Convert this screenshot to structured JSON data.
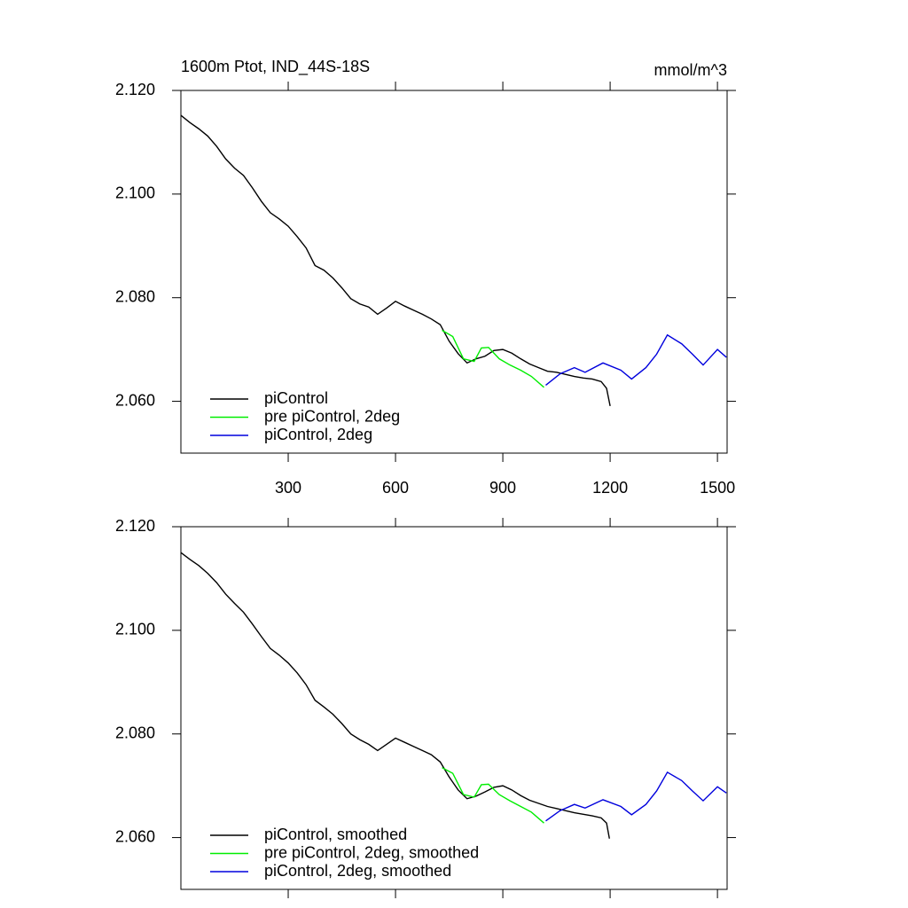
{
  "chart_data": [
    {
      "type": "line",
      "title": "1600m Ptot, IND_44S-18S",
      "y_units": "mmol/m^3",
      "xlim": [
        0,
        1527
      ],
      "xticks": [
        300,
        600,
        900,
        1200,
        1500
      ],
      "show_xtick_labels": true,
      "ylim": [
        2.05,
        2.12
      ],
      "yticks": [
        {
          "value": 2.06,
          "label": "2.060"
        },
        {
          "value": 2.08,
          "label": "2.080"
        },
        {
          "value": 2.1,
          "label": "2.100"
        },
        {
          "value": 2.12,
          "label": "2.120"
        }
      ],
      "legend": "lower left",
      "series": [
        {
          "name": "piControl",
          "color": "#000000",
          "x": [
            0,
            25,
            50,
            75,
            100,
            125,
            150,
            175,
            200,
            225,
            250,
            275,
            300,
            325,
            350,
            375,
            400,
            425,
            450,
            475,
            500,
            525,
            550,
            575,
            600,
            625,
            650,
            675,
            700,
            725,
            750,
            775,
            800,
            825,
            850,
            875,
            900,
            925,
            950,
            975,
            1000,
            1025,
            1050,
            1075,
            1100,
            1125,
            1150,
            1175,
            1190,
            1200
          ],
          "values": [
            2.1152,
            2.1138,
            2.1126,
            2.1112,
            2.1092,
            2.1068,
            2.105,
            2.1036,
            2.1012,
            2.0986,
            2.0964,
            2.0952,
            2.0938,
            2.0918,
            2.0896,
            2.0862,
            2.0853,
            2.0838,
            2.0819,
            2.0798,
            2.0788,
            2.0782,
            2.0768,
            2.078,
            2.0793,
            2.0784,
            2.0776,
            2.0768,
            2.0759,
            2.0748,
            2.0716,
            2.0692,
            2.0674,
            2.0682,
            2.0687,
            2.0698,
            2.07,
            2.0693,
            2.0682,
            2.0672,
            2.0665,
            2.0658,
            2.0656,
            2.0652,
            2.0648,
            2.0645,
            2.0643,
            2.0638,
            2.0625,
            2.0591
          ]
        },
        {
          "name": "pre piControl, 2deg",
          "color": "#00ee00",
          "x": [
            730,
            760,
            790,
            820,
            840,
            860,
            890,
            920,
            950,
            980,
            1015
          ],
          "values": [
            2.0737,
            2.0725,
            2.0682,
            2.0677,
            2.0703,
            2.0704,
            2.0682,
            2.067,
            2.066,
            2.0648,
            2.0627
          ]
        },
        {
          "name": "piControl, 2deg",
          "color": "#0000dd",
          "x": [
            1020,
            1060,
            1100,
            1130,
            1180,
            1230,
            1260,
            1300,
            1330,
            1360,
            1400,
            1430,
            1460,
            1500,
            1525
          ],
          "values": [
            2.0631,
            2.0653,
            2.0665,
            2.0656,
            2.0674,
            2.066,
            2.0643,
            2.0665,
            2.0691,
            2.0728,
            2.0711,
            2.0691,
            2.067,
            2.07,
            2.0685
          ]
        }
      ]
    },
    {
      "type": "line",
      "xlim": [
        0,
        1527
      ],
      "xticks": [
        300,
        600,
        900,
        1200,
        1500
      ],
      "show_xtick_labels": false,
      "ylim": [
        2.05,
        2.12
      ],
      "yticks": [
        {
          "value": 2.06,
          "label": "2.060"
        },
        {
          "value": 2.08,
          "label": "2.080"
        },
        {
          "value": 2.1,
          "label": "2.100"
        },
        {
          "value": 2.12,
          "label": "2.120"
        }
      ],
      "legend": "lower left",
      "series": [
        {
          "name": "piControl, smoothed",
          "color": "#000000",
          "x": [
            0,
            25,
            50,
            75,
            100,
            125,
            150,
            175,
            200,
            225,
            250,
            275,
            300,
            325,
            350,
            375,
            400,
            425,
            450,
            475,
            500,
            525,
            550,
            575,
            600,
            625,
            650,
            675,
            700,
            725,
            750,
            775,
            800,
            825,
            850,
            875,
            900,
            925,
            950,
            975,
            1000,
            1025,
            1050,
            1075,
            1100,
            1125,
            1150,
            1175,
            1190,
            1198
          ],
          "values": [
            2.115,
            2.1137,
            2.1125,
            2.111,
            2.1092,
            2.107,
            2.1052,
            2.1035,
            2.1012,
            2.0988,
            2.0965,
            2.0952,
            2.0937,
            2.0918,
            2.0895,
            2.0865,
            2.0852,
            2.0838,
            2.082,
            2.08,
            2.0789,
            2.078,
            2.0768,
            2.078,
            2.0792,
            2.0784,
            2.0776,
            2.0768,
            2.076,
            2.0746,
            2.0717,
            2.0692,
            2.0675,
            2.068,
            2.0688,
            2.0697,
            2.07,
            2.0692,
            2.0681,
            2.0672,
            2.0666,
            2.066,
            2.0656,
            2.0652,
            2.0648,
            2.0645,
            2.0642,
            2.0638,
            2.0628,
            2.0598
          ]
        },
        {
          "name": "pre piControl, 2deg, smoothed",
          "color": "#00ee00",
          "x": [
            730,
            760,
            790,
            820,
            840,
            860,
            890,
            920,
            950,
            980,
            1015
          ],
          "values": [
            2.0735,
            2.0724,
            2.0683,
            2.0678,
            2.0702,
            2.0703,
            2.0683,
            2.0671,
            2.066,
            2.0649,
            2.0628
          ]
        },
        {
          "name": "piControl, 2deg, smoothed",
          "color": "#0000dd",
          "x": [
            1020,
            1060,
            1100,
            1130,
            1180,
            1230,
            1260,
            1300,
            1330,
            1360,
            1400,
            1430,
            1460,
            1500,
            1525
          ],
          "values": [
            2.0632,
            2.0652,
            2.0664,
            2.0657,
            2.0673,
            2.066,
            2.0644,
            2.0664,
            2.069,
            2.0726,
            2.071,
            2.069,
            2.0671,
            2.0698,
            2.0686
          ]
        }
      ]
    }
  ]
}
